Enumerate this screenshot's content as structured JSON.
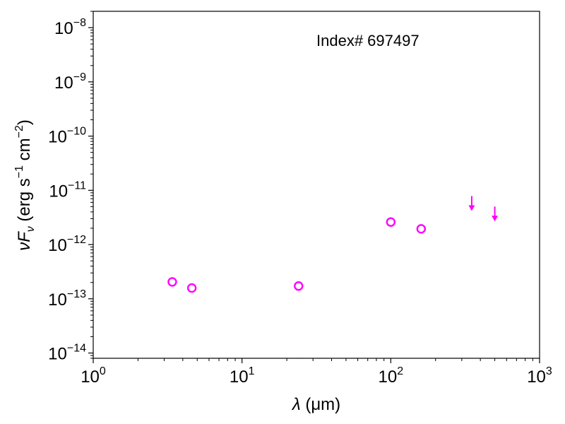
{
  "chart_data": {
    "type": "scatter",
    "title": "",
    "annotation": "Index# 697497",
    "xlabel": {
      "lambda": "λ",
      "unit": " (μm)"
    },
    "ylabel": {
      "nu": "ν",
      "F": "F",
      "sub": "ν",
      "pre": " (erg s",
      "exp1": "−1",
      "mid": " cm",
      "exp2": "−2",
      "post": ")"
    },
    "x_scale": "log",
    "y_scale": "log",
    "xlim": [
      1,
      1000
    ],
    "ylim": [
      8e-15,
      2e-08
    ],
    "x_ticks": [
      {
        "value": 1,
        "base": "10",
        "exp": "0"
      },
      {
        "value": 10,
        "base": "10",
        "exp": "1"
      },
      {
        "value": 100,
        "base": "10",
        "exp": "2"
      },
      {
        "value": 1000,
        "base": "10",
        "exp": "3"
      }
    ],
    "y_ticks": [
      {
        "value": 1e-14,
        "base": "10",
        "exp": "−14"
      },
      {
        "value": 1e-13,
        "base": "10",
        "exp": "−13"
      },
      {
        "value": 1e-12,
        "base": "10",
        "exp": "−12"
      },
      {
        "value": 1e-11,
        "base": "10",
        "exp": "−11"
      },
      {
        "value": 1e-10,
        "base": "10",
        "exp": "−10"
      },
      {
        "value": 1e-09,
        "base": "10",
        "exp": "−9"
      },
      {
        "value": 1e-08,
        "base": "10",
        "exp": "−8"
      }
    ],
    "grid": false,
    "series": [
      {
        "marker": "open-circle",
        "color": "#ff00ff",
        "x": [
          3.4,
          4.6,
          24,
          100,
          160
        ],
        "y": [
          2.05e-13,
          1.58e-13,
          1.72e-13,
          2.6e-12,
          1.95e-12
        ]
      },
      {
        "marker": "down-arrow",
        "color": "#ff00ff",
        "x": [
          350,
          500
        ],
        "y": [
          5.3e-12,
          3.4e-12
        ]
      }
    ]
  }
}
